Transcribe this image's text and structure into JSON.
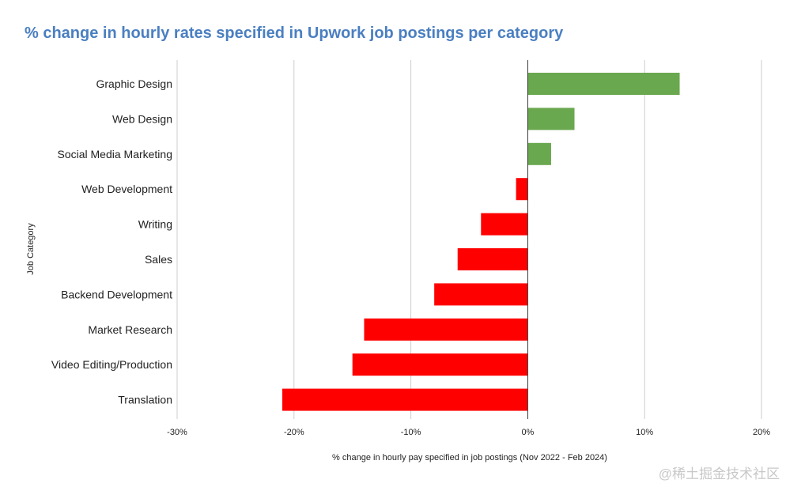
{
  "chart_data": {
    "type": "bar",
    "orientation": "horizontal",
    "title": "% change in hourly rates specified in Upwork job postings per category",
    "xlabel": "% change in hourly pay specified in job postings (Nov 2022 - Feb 2024)",
    "ylabel": "Job Category",
    "categories": [
      "Graphic Design",
      "Web Design",
      "Social Media Marketing",
      "Web Development",
      "Writing",
      "Sales",
      "Backend Development",
      "Market Research",
      "Video Editing/Production",
      "Translation"
    ],
    "values": [
      13,
      4,
      2,
      -1,
      -4,
      -6,
      -8,
      -14,
      -15,
      -21
    ],
    "unit": "%",
    "xlim": [
      -30,
      20
    ],
    "xticks": [
      -30,
      -20,
      -10,
      0,
      10,
      20
    ],
    "xtick_labels": [
      "-30%",
      "-20%",
      "-10%",
      "0%",
      "10%",
      "20%"
    ],
    "grid": true,
    "colors": {
      "positive": "#6aa84f",
      "negative": "#ff0000",
      "title": "#4a7fc1"
    }
  },
  "watermark": "@稀土掘金技术社区"
}
